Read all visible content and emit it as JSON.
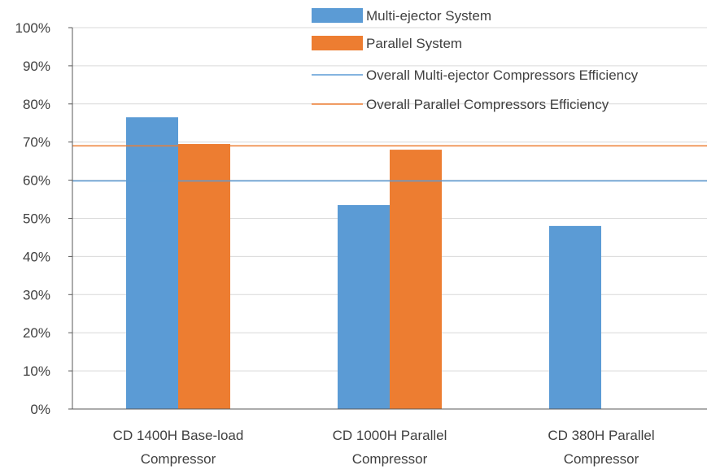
{
  "chart_data": {
    "type": "bar",
    "categories": [
      [
        "CD 1400H  Base-load",
        "Compressor"
      ],
      [
        "CD 1000H  Parallel",
        "Compressor"
      ],
      [
        "CD 380H  Parallel",
        "Compressor"
      ]
    ],
    "series": [
      {
        "name": "Multi-ejector System",
        "values": [
          76.5,
          53.5,
          48.0
        ],
        "color": "#5B9BD5"
      },
      {
        "name": "Parallel System",
        "values": [
          69.5,
          68.0,
          null
        ],
        "color": "#ED7D31"
      }
    ],
    "reference_lines": [
      {
        "name": "Overall Multi-ejector Compressors Efficiency",
        "value": 59.8,
        "color": "#5B9BD5"
      },
      {
        "name": "Overall Parallel Compressors Efficiency",
        "value": 69.0,
        "color": "#ED7D31"
      }
    ],
    "y_ticks": [
      "0%",
      "10%",
      "20%",
      "30%",
      "40%",
      "50%",
      "60%",
      "70%",
      "80%",
      "90%",
      "100%"
    ],
    "ylim": [
      0,
      100
    ],
    "grid": true,
    "legend_position": "top-right",
    "title": "",
    "xlabel": "",
    "ylabel": "",
    "axis_color": "#595959",
    "grid_color": "#D9D9D9"
  }
}
